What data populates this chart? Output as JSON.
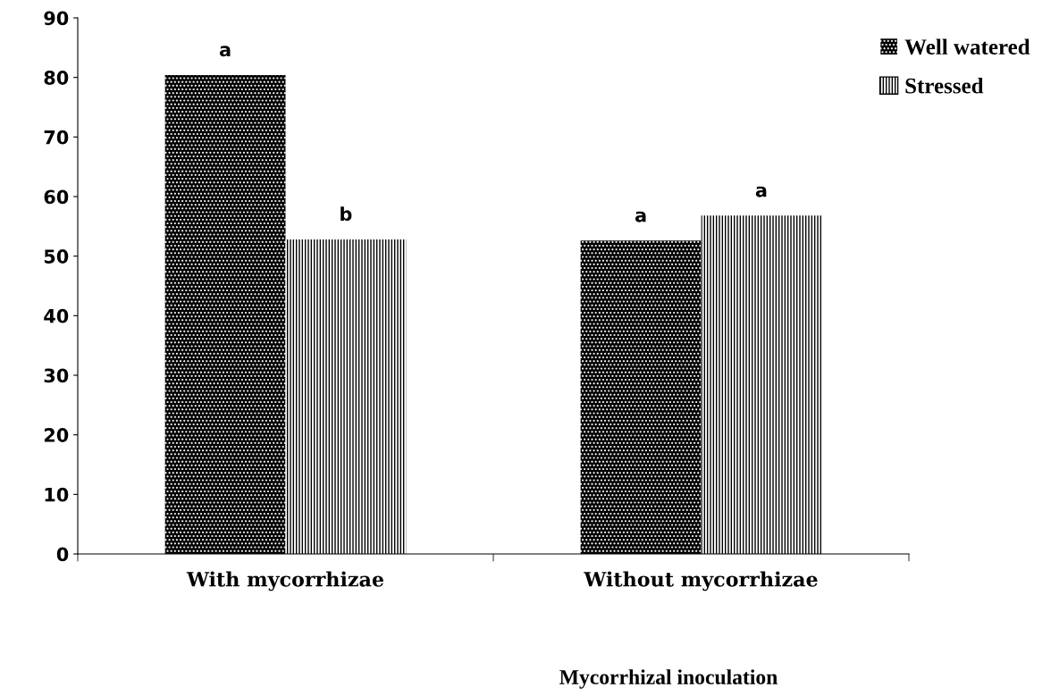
{
  "chart_data": {
    "type": "bar",
    "xlabel": "Mycorrhizal inoculation",
    "categories": [
      "With mycorrhizae",
      "Without mycorrhizae"
    ],
    "series": [
      {
        "name": "Well watered",
        "color": "#000000",
        "values": [
          80.4,
          52.6
        ]
      },
      {
        "name": "Stressed",
        "color": "#ffffff",
        "values": [
          52.8,
          56.8
        ]
      }
    ],
    "ylim": [
      0,
      90
    ],
    "yticks": [
      0,
      10,
      20,
      30,
      40,
      50,
      60,
      70,
      80,
      90
    ],
    "annotations": [
      "a",
      "b",
      "a",
      "a"
    ],
    "grid": false,
    "legend": "top right"
  }
}
